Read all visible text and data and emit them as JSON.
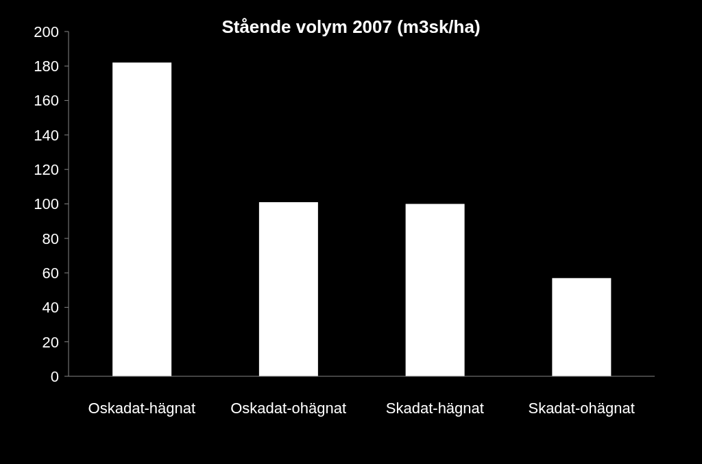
{
  "chart_data": {
    "type": "bar",
    "title": "Stående volym 2007 (m3sk/ha)",
    "categories": [
      "Oskadat-hägnat",
      "Oskadat-ohägnat",
      "Skadat-hägnat",
      "Skadat-ohägnat"
    ],
    "values": [
      182,
      101,
      100,
      57
    ],
    "color": "#ffffff",
    "ylim": [
      0,
      200
    ],
    "yticks": [
      0,
      20,
      40,
      60,
      80,
      100,
      120,
      140,
      160,
      180,
      200
    ],
    "grid": false
  }
}
